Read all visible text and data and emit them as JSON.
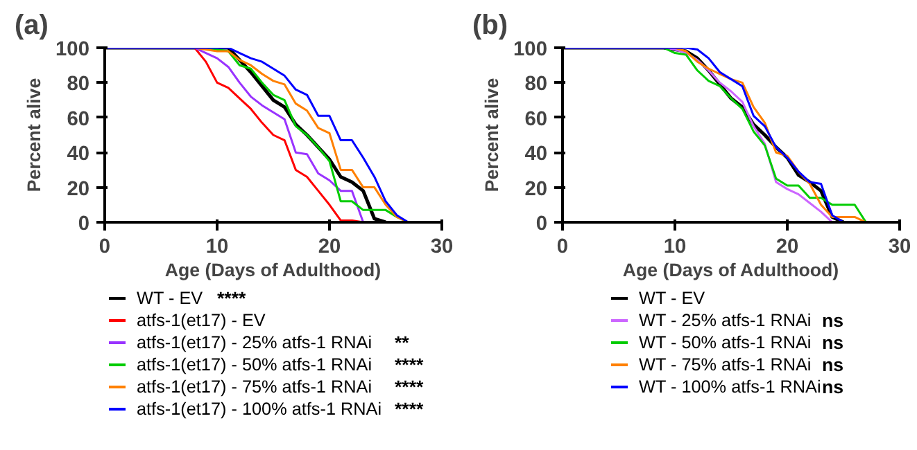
{
  "chart_data": [
    {
      "type": "line",
      "title": "(a)",
      "xlabel": "Age (Days of Adulthood)",
      "ylabel": "Percent alive",
      "xlim": [
        0,
        30
      ],
      "ylim": [
        0,
        100
      ],
      "xticks": [
        0,
        10,
        20,
        30
      ],
      "yticks": [
        0,
        20,
        40,
        60,
        80,
        100
      ],
      "grid": false,
      "legend": "bottom",
      "marker": "none",
      "line_style": "solid",
      "series": [
        {
          "name": "WT - EV",
          "color": "#000000",
          "x": [
            0,
            11,
            12,
            13,
            14,
            15,
            16,
            17,
            18,
            19,
            20,
            21,
            22,
            23,
            24,
            25
          ],
          "values": [
            100,
            100,
            93,
            86,
            78,
            70,
            66,
            56,
            50,
            43,
            36,
            26,
            23,
            18,
            2,
            0
          ]
        },
        {
          "name": "atfs-1(et17) - EV",
          "color": "#ff0000",
          "x": [
            0,
            8,
            9,
            10,
            11,
            12,
            13,
            14,
            15,
            16,
            17,
            18,
            19,
            20,
            21,
            22,
            23
          ],
          "values": [
            100,
            100,
            92,
            80,
            77,
            71,
            65,
            57,
            50,
            47,
            30,
            26,
            18,
            10,
            1,
            1,
            0
          ]
        },
        {
          "name": "atfs-1(et17) - 25% atfs-1 RNAi",
          "color": "#9933ff",
          "x": [
            0,
            8,
            9,
            10,
            11,
            12,
            13,
            14,
            15,
            16,
            17,
            18,
            19,
            20,
            21,
            22,
            23
          ],
          "values": [
            100,
            100,
            97,
            94,
            89,
            80,
            72,
            67,
            63,
            59,
            40,
            39,
            28,
            24,
            18,
            18,
            0
          ]
        },
        {
          "name": "atfs-1(et17) - 50% atfs-1 RNAi",
          "color": "#00cc00",
          "x": [
            0,
            8,
            10,
            11,
            12,
            13,
            14,
            15,
            16,
            17,
            18,
            19,
            20,
            21,
            22,
            23,
            24,
            25,
            26,
            27
          ],
          "values": [
            100,
            100,
            99,
            98,
            90,
            88,
            80,
            73,
            70,
            55,
            50,
            43,
            35,
            12,
            12,
            7,
            7,
            7,
            3,
            0
          ]
        },
        {
          "name": "atfs-1(et17) - 75% atfs-1 RNAi",
          "color": "#ff8000",
          "x": [
            0,
            8,
            10,
            11,
            12,
            13,
            14,
            15,
            16,
            17,
            18,
            19,
            20,
            21,
            22,
            23,
            24,
            25,
            26,
            27
          ],
          "values": [
            100,
            100,
            98,
            98,
            93,
            90,
            85,
            81,
            79,
            68,
            64,
            54,
            51,
            30,
            30,
            20,
            20,
            10,
            3,
            0
          ]
        },
        {
          "name": "atfs-1(et17) - 100% atfs-1 RNAi",
          "color": "#0000ff",
          "x": [
            0,
            11,
            12,
            13,
            14,
            15,
            16,
            17,
            18,
            19,
            20,
            21,
            22,
            23,
            24,
            25,
            26,
            27,
            28
          ],
          "values": [
            100,
            100,
            97,
            94,
            92,
            88,
            84,
            76,
            73,
            61,
            61,
            47,
            47,
            37,
            26,
            12,
            4,
            0,
            0
          ]
        }
      ],
      "annotations": [
        "****",
        null,
        "**",
        "****",
        "****",
        "****"
      ]
    },
    {
      "type": "line",
      "title": "(b)",
      "xlabel": "Age (Days of Adulthood)",
      "ylabel": "Percent alive",
      "xlim": [
        0,
        30
      ],
      "ylim": [
        0,
        100
      ],
      "xticks": [
        0,
        10,
        20,
        30
      ],
      "yticks": [
        0,
        20,
        40,
        60,
        80,
        100
      ],
      "grid": false,
      "legend": "bottom",
      "marker": "none",
      "line_style": "solid",
      "series": [
        {
          "name": "WT - EV",
          "color": "#000000",
          "x": [
            0,
            9,
            10,
            11,
            12,
            13,
            14,
            15,
            16,
            17,
            18,
            19,
            20,
            21,
            22,
            23,
            24,
            25
          ],
          "values": [
            100,
            100,
            99,
            98,
            94,
            87,
            79,
            71,
            66,
            56,
            50,
            43,
            37,
            27,
            23,
            18,
            3,
            0
          ]
        },
        {
          "name": "WT - 25% atfs-1 RNAi",
          "color": "#cc66ff",
          "x": [
            0,
            9,
            10,
            11,
            12,
            13,
            14,
            15,
            16,
            17,
            18,
            19,
            20,
            21,
            22,
            23,
            24
          ],
          "values": [
            100,
            100,
            99,
            97,
            93,
            87,
            80,
            75,
            69,
            55,
            45,
            23,
            19,
            16,
            11,
            6,
            0
          ]
        },
        {
          "name": "WT - 50% atfs-1 RNAi",
          "color": "#00cc00",
          "x": [
            0,
            9,
            10,
            11,
            12,
            13,
            14,
            15,
            16,
            17,
            18,
            19,
            20,
            21,
            22,
            23,
            24,
            25,
            26,
            27
          ],
          "values": [
            100,
            100,
            97,
            96,
            87,
            81,
            78,
            71,
            65,
            52,
            44,
            25,
            21,
            21,
            14,
            14,
            10,
            10,
            10,
            0
          ]
        },
        {
          "name": "WT - 75% atfs-1 RNAi",
          "color": "#ff8000",
          "x": [
            0,
            10,
            11,
            12,
            13,
            14,
            15,
            16,
            17,
            18,
            19,
            20,
            21,
            22,
            23,
            24,
            25,
            26,
            27
          ],
          "values": [
            100,
            100,
            98,
            92,
            88,
            85,
            82,
            80,
            66,
            57,
            40,
            38,
            29,
            22,
            10,
            3,
            3,
            3,
            0
          ]
        },
        {
          "name": "WT - 100% atfs-1 RNAi",
          "color": "#0000ff",
          "x": [
            0,
            11,
            12,
            13,
            14,
            15,
            16,
            17,
            18,
            19,
            20,
            21,
            22,
            23,
            24,
            25
          ],
          "values": [
            100,
            100,
            99,
            94,
            86,
            82,
            78,
            61,
            55,
            43,
            37,
            29,
            23,
            22,
            4,
            0
          ]
        }
      ],
      "annotations": [
        null,
        "ns",
        "ns",
        "ns",
        "ns"
      ]
    }
  ]
}
